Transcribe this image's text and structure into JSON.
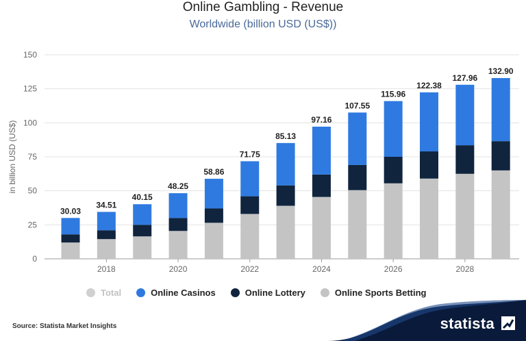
{
  "header": {
    "title": "Online Gambling - Revenue",
    "subtitle": "Worldwide (billion USD (US$))"
  },
  "chart_data": {
    "type": "bar",
    "stacked": true,
    "title": "Online Gambling - Revenue",
    "subtitle": "Worldwide (billion USD (US$))",
    "xlabel": "",
    "ylabel": "in billion USD (US$)",
    "ylim": [
      0,
      150
    ],
    "yticks": [
      0,
      25,
      50,
      75,
      100,
      125,
      150
    ],
    "grid": true,
    "x": [
      2017,
      2018,
      2019,
      2020,
      2021,
      2022,
      2023,
      2024,
      2025,
      2026,
      2027,
      2028,
      2029
    ],
    "xtick_labels": [
      "",
      "2018",
      "",
      "2020",
      "",
      "2022",
      "",
      "2024",
      "",
      "2026",
      "",
      "2028",
      ""
    ],
    "totals": [
      "30.03",
      "34.51",
      "40.15",
      "48.25",
      "58.86",
      "71.75",
      "85.13",
      "97.16",
      "107.55",
      "115.96",
      "122.38",
      "127.96",
      "132.90"
    ],
    "series": [
      {
        "name": "Online Sports Betting",
        "color": "#c4c4c4",
        "values": [
          12,
          14.5,
          16.5,
          20.5,
          26.5,
          33,
          39,
          45.5,
          50.5,
          55.5,
          59,
          62.5,
          65
        ]
      },
      {
        "name": "Online Lottery",
        "color": "#10243e",
        "values": [
          6,
          6.5,
          8.5,
          9.5,
          10.5,
          13,
          15,
          16.5,
          18.5,
          19.5,
          20,
          21,
          21.5
        ]
      },
      {
        "name": "Online Casinos",
        "color": "#2f7ae0",
        "values": [
          12.03,
          13.51,
          15.15,
          18.25,
          21.86,
          25.75,
          31.13,
          35.16,
          38.55,
          40.96,
          43.38,
          44.46,
          46.4
        ]
      }
    ],
    "legend_position": "bottom"
  },
  "legend": {
    "items": [
      {
        "label": "Total",
        "color": "#d0d0d0",
        "dim": true
      },
      {
        "label": "Online Casinos",
        "color": "#2f7ae0",
        "dim": false
      },
      {
        "label": "Online Lottery",
        "color": "#10243e",
        "dim": false
      },
      {
        "label": "Online Sports Betting",
        "color": "#c4c4c4",
        "dim": false
      }
    ]
  },
  "footer": {
    "source": "Source: Statista Market Insights",
    "brand": "statista",
    "brand_color": "#0a1a3a"
  }
}
